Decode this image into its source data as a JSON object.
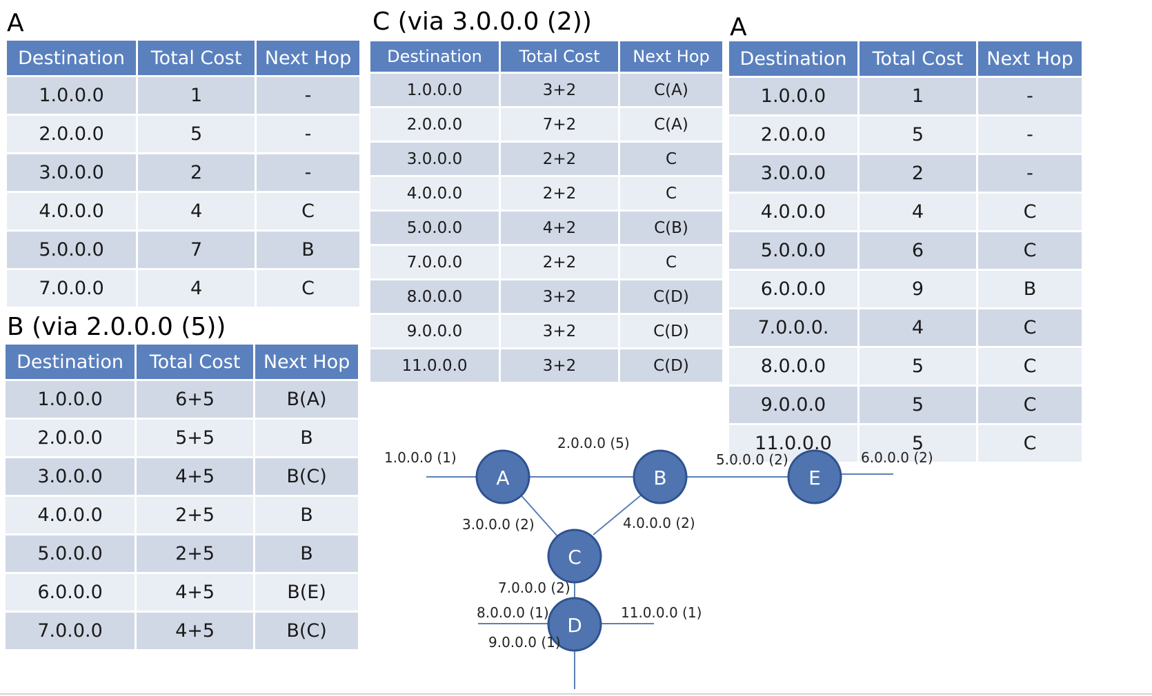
{
  "sections": {
    "a_top_left": "A",
    "b_via": "B (via 2.0.0.0 (5))",
    "c_via": "C (via 3.0.0.0 (2))",
    "a_right": "A"
  },
  "columns": [
    "Destination",
    "Total Cost",
    "Next Hop"
  ],
  "tables": {
    "a_initial": [
      [
        "1.0.0.0",
        "1",
        "-"
      ],
      [
        "2.0.0.0",
        "5",
        "-"
      ],
      [
        "3.0.0.0",
        "2",
        "-"
      ],
      [
        "4.0.0.0",
        "4",
        "C"
      ],
      [
        "5.0.0.0",
        "7",
        "B"
      ],
      [
        "7.0.0.0",
        "4",
        "C"
      ]
    ],
    "b_via": [
      [
        "1.0.0.0",
        "6+5",
        "B(A)"
      ],
      [
        "2.0.0.0",
        "5+5",
        "B"
      ],
      [
        "3.0.0.0",
        "4+5",
        "B(C)"
      ],
      [
        "4.0.0.0",
        "2+5",
        "B"
      ],
      [
        "5.0.0.0",
        "2+5",
        "B"
      ],
      [
        "6.0.0.0",
        "4+5",
        "B(E)"
      ],
      [
        "7.0.0.0",
        "4+5",
        "B(C)"
      ]
    ],
    "c_via": [
      [
        "1.0.0.0",
        "3+2",
        "C(A)"
      ],
      [
        "2.0.0.0",
        "7+2",
        "C(A)"
      ],
      [
        "3.0.0.0",
        "2+2",
        "C"
      ],
      [
        "4.0.0.0",
        "2+2",
        "C"
      ],
      [
        "5.0.0.0",
        "4+2",
        "C(B)"
      ],
      [
        "7.0.0.0",
        "2+2",
        "C"
      ],
      [
        "8.0.0.0",
        "3+2",
        "C(D)"
      ],
      [
        "9.0.0.0",
        "3+2",
        "C(D)"
      ],
      [
        "11.0.0.0",
        "3+2",
        "C(D)"
      ]
    ],
    "a_updated": [
      [
        "1.0.0.0",
        "1",
        "-"
      ],
      [
        "2.0.0.0",
        "5",
        "-"
      ],
      [
        "3.0.0.0",
        "2",
        "-"
      ],
      [
        "4.0.0.0",
        "4",
        "C"
      ],
      [
        "5.0.0.0",
        "6",
        "C"
      ],
      [
        "6.0.0.0",
        "9",
        "B"
      ],
      [
        "7.0.0.0.",
        "4",
        "C"
      ],
      [
        "8.0.0.0",
        "5",
        "C"
      ],
      [
        "9.0.0.0",
        "5",
        "C"
      ],
      [
        "11.0.0.0",
        "5",
        "C"
      ]
    ]
  },
  "diagram": {
    "colors": {
      "node_fill": "#4f74b0",
      "node_stroke": "#2f528f",
      "link": "#5b7fb6",
      "node_text": "#ffffff"
    },
    "nodes": [
      {
        "id": "A",
        "label": "A"
      },
      {
        "id": "B",
        "label": "B"
      },
      {
        "id": "C",
        "label": "C"
      },
      {
        "id": "D",
        "label": "D"
      },
      {
        "id": "E",
        "label": "E"
      }
    ],
    "links": [
      {
        "id": "l-1",
        "label": "1.0.0.0 (1)"
      },
      {
        "id": "l-2",
        "label": "2.0.0.0 (5)"
      },
      {
        "id": "l-3",
        "label": "3.0.0.0 (2)"
      },
      {
        "id": "l-4",
        "label": "4.0.0.0 (2)"
      },
      {
        "id": "l-5",
        "label": "5.0.0.0 (2)"
      },
      {
        "id": "l-6",
        "label": "6.0.0.0 (2)"
      },
      {
        "id": "l-7",
        "label": "7.0.0.0 (2)"
      },
      {
        "id": "l-8",
        "label": "8.0.0.0 (1)"
      },
      {
        "id": "l-9",
        "label": "9.0.0.0 (1)"
      },
      {
        "id": "l-11",
        "label": "11.0.0.0 (1)"
      }
    ]
  }
}
